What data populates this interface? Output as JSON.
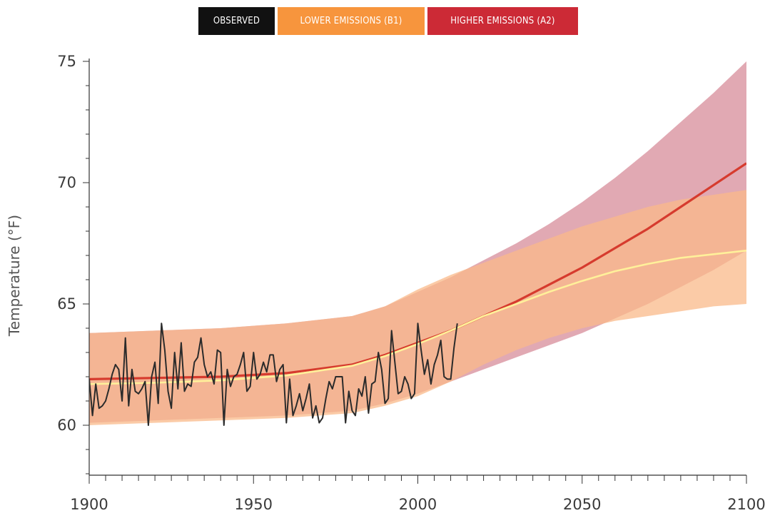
{
  "legend": [
    {
      "key": "observed",
      "label": "OBSERVED",
      "color": "#111111"
    },
    {
      "key": "b1",
      "label": "LOWER EMISSIONS (B1)",
      "color": "#f7953d"
    },
    {
      "key": "a2",
      "label": "HIGHER EMISSIONS (A2)",
      "color": "#cc2a36"
    }
  ],
  "chart_data": {
    "type": "line",
    "title": "",
    "xlabel": "",
    "ylabel": "Temperature (°F)",
    "xlim": [
      1900,
      2100
    ],
    "ylim": [
      58,
      75
    ],
    "x_ticks": [
      1900,
      1950,
      2000,
      2050,
      2100
    ],
    "y_ticks": [
      60,
      65,
      70,
      75
    ],
    "grid": false,
    "legend_position": "top-center",
    "colors": {
      "observed": "#2b2b2b",
      "a2_line": "#d63b2e",
      "b1_line": "#fff09a",
      "a2_band": "#dc9aa6",
      "b1_band": "#f9b98a",
      "overlap_band": "#ef9a80"
    },
    "series": [
      {
        "name": "HIGHER EMISSIONS (A2)",
        "key": "a2",
        "x": [
          1900,
          1920,
          1940,
          1960,
          1980,
          1990,
          2000,
          2010,
          2020,
          2030,
          2040,
          2050,
          2060,
          2070,
          2080,
          2090,
          2100
        ],
        "y": [
          61.9,
          61.95,
          62.0,
          62.15,
          62.5,
          62.9,
          63.4,
          63.9,
          64.5,
          65.1,
          65.8,
          66.5,
          67.3,
          68.1,
          69.0,
          69.9,
          70.8
        ],
        "band_upper": [
          63.8,
          63.9,
          64.0,
          64.2,
          64.5,
          64.9,
          65.5,
          66.1,
          66.8,
          67.5,
          68.3,
          69.2,
          70.2,
          71.3,
          72.5,
          73.7,
          75.0
        ],
        "band_lower": [
          60.1,
          60.2,
          60.3,
          60.4,
          60.6,
          60.9,
          61.3,
          61.8,
          62.3,
          62.8,
          63.3,
          63.8,
          64.4,
          65.0,
          65.7,
          66.4,
          67.2
        ]
      },
      {
        "name": "LOWER EMISSIONS (B1)",
        "key": "b1",
        "x": [
          1900,
          1920,
          1940,
          1960,
          1980,
          1990,
          2000,
          2010,
          2020,
          2030,
          2040,
          2050,
          2060,
          2070,
          2080,
          2090,
          2100
        ],
        "y": [
          61.7,
          61.75,
          61.85,
          62.05,
          62.45,
          62.85,
          63.35,
          63.9,
          64.5,
          65.0,
          65.5,
          65.95,
          66.35,
          66.65,
          66.9,
          67.05,
          67.2
        ],
        "band_upper": [
          63.8,
          63.9,
          64.0,
          64.2,
          64.5,
          64.9,
          65.6,
          66.2,
          66.7,
          67.2,
          67.7,
          68.2,
          68.6,
          69.0,
          69.3,
          69.5,
          69.7
        ],
        "band_lower": [
          60.0,
          60.1,
          60.2,
          60.3,
          60.5,
          60.8,
          61.2,
          61.8,
          62.5,
          63.1,
          63.6,
          64.0,
          64.3,
          64.5,
          64.7,
          64.9,
          65.0
        ]
      },
      {
        "name": "OBSERVED",
        "key": "observed",
        "x": [
          1900,
          1901,
          1902,
          1903,
          1904,
          1905,
          1906,
          1907,
          1908,
          1909,
          1910,
          1911,
          1912,
          1913,
          1914,
          1915,
          1916,
          1917,
          1918,
          1919,
          1920,
          1921,
          1922,
          1923,
          1924,
          1925,
          1926,
          1927,
          1928,
          1929,
          1930,
          1931,
          1932,
          1933,
          1934,
          1935,
          1936,
          1937,
          1938,
          1939,
          1940,
          1941,
          1942,
          1943,
          1944,
          1945,
          1946,
          1947,
          1948,
          1949,
          1950,
          1951,
          1952,
          1953,
          1954,
          1955,
          1956,
          1957,
          1958,
          1959,
          1960,
          1961,
          1962,
          1963,
          1964,
          1965,
          1966,
          1967,
          1968,
          1969,
          1970,
          1971,
          1972,
          1973,
          1974,
          1975,
          1976,
          1977,
          1978,
          1979,
          1980,
          1981,
          1982,
          1983,
          1984,
          1985,
          1986,
          1987,
          1988,
          1989,
          1990,
          1991,
          1992,
          1993,
          1994,
          1995,
          1996,
          1997,
          1998,
          1999,
          2000,
          2001,
          2002,
          2003,
          2004,
          2005,
          2006,
          2007,
          2008,
          2009,
          2010,
          2011,
          2012
        ],
        "y": [
          61.9,
          60.4,
          61.7,
          60.7,
          60.8,
          61.0,
          61.5,
          62.1,
          62.5,
          62.3,
          61.0,
          63.6,
          60.8,
          62.3,
          61.4,
          61.3,
          61.5,
          61.8,
          60.0,
          62.0,
          62.6,
          60.9,
          64.2,
          63.1,
          61.4,
          60.7,
          63.0,
          61.5,
          63.4,
          61.4,
          61.7,
          61.6,
          62.6,
          62.8,
          63.6,
          62.5,
          62.0,
          62.2,
          61.7,
          63.1,
          63.0,
          60.0,
          62.3,
          61.6,
          62.0,
          62.1,
          62.5,
          63.0,
          61.4,
          61.6,
          63.0,
          61.9,
          62.1,
          62.6,
          62.2,
          62.9,
          62.9,
          61.8,
          62.3,
          62.5,
          60.1,
          61.9,
          60.4,
          60.8,
          61.3,
          60.6,
          61.1,
          61.7,
          60.3,
          60.8,
          60.1,
          60.3,
          61.1,
          61.8,
          61.5,
          62.0,
          62.0,
          62.0,
          60.1,
          61.4,
          60.6,
          60.4,
          61.5,
          61.2,
          62.0,
          60.5,
          61.7,
          61.8,
          63.0,
          62.3,
          60.9,
          61.1,
          63.9,
          62.6,
          61.3,
          61.4,
          62.0,
          61.7,
          61.1,
          61.3,
          64.2,
          63.1,
          62.1,
          62.7,
          61.7,
          62.5,
          62.9,
          63.5,
          62.0,
          61.9,
          61.9,
          63.2,
          64.2
        ]
      }
    ]
  }
}
